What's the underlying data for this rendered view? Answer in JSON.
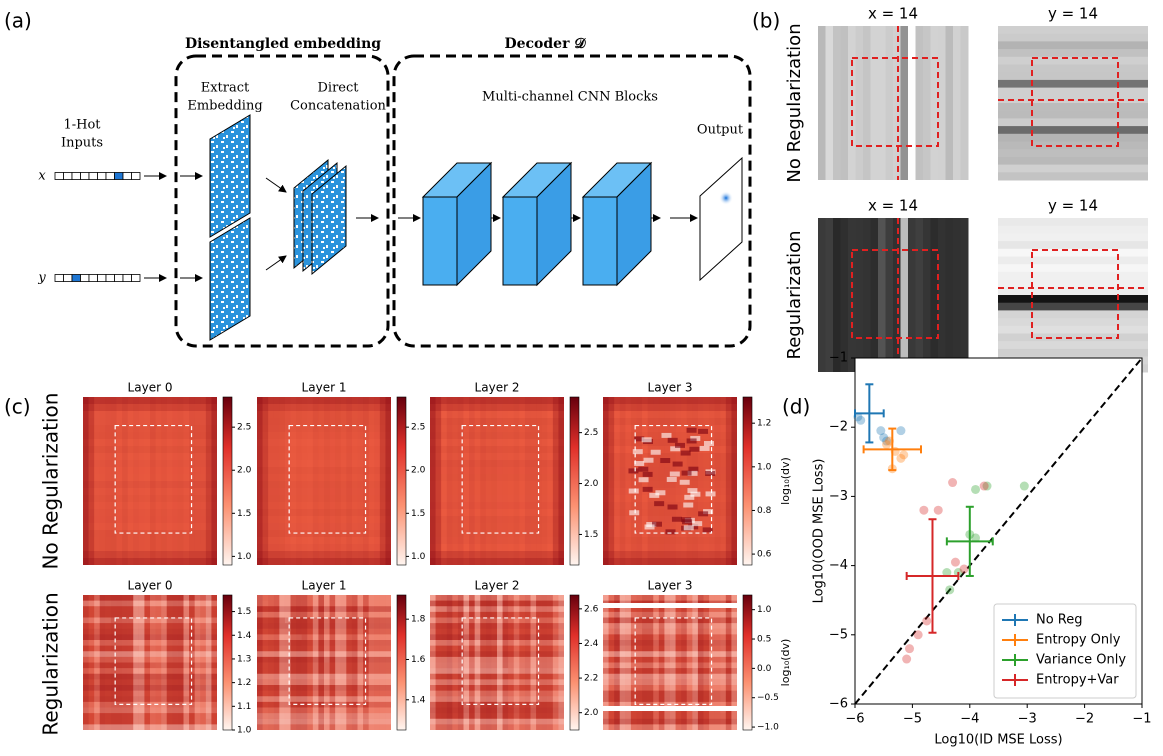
{
  "panel_a": {
    "label": "(a)",
    "embedding_title": "Disentangled embedding",
    "decoder_title": "Decoder 𝒟",
    "extract": [
      "Extract",
      "Embedding"
    ],
    "concat": [
      "Direct",
      "Concatenation"
    ],
    "cnn": "Multi-channel CNN Blocks",
    "inputs": [
      "1-Hot",
      "Inputs"
    ],
    "x": "x",
    "y": "y",
    "output": "Output"
  },
  "panel_b": {
    "label": "(b)",
    "titles": [
      "x = 14",
      "y = 14",
      "x = 14",
      "y = 14"
    ],
    "rows": [
      "No Regularization",
      "Regularization"
    ]
  },
  "panel_c": {
    "label": "(c)",
    "rows": [
      "No Regularization",
      "Regularization"
    ],
    "colorbar_label": "log₁₀(dv)",
    "heatmaps": [
      {
        "title": "Layer 0",
        "clim": [
          0.9,
          2.85
        ],
        "cticks": [
          {
            "value": 1,
            "label": "1.0"
          },
          1.5,
          {
            "value": 2,
            "label": "2.0"
          },
          2.5
        ]
      },
      {
        "title": "Layer 1",
        "clim": [
          0.9,
          2.85
        ],
        "cticks": [
          {
            "value": 1,
            "label": "1.0"
          },
          1.5,
          {
            "value": 2,
            "label": "2.0"
          },
          2.5
        ]
      },
      {
        "title": "Layer 2",
        "clim": [
          1.2,
          2.85
        ],
        "cticks": [
          1.5,
          {
            "value": 2,
            "label": "2.0"
          },
          2.5
        ]
      },
      {
        "title": "Layer 3",
        "clim": [
          0.55,
          1.32
        ],
        "cticks": [
          0.6,
          0.8,
          {
            "value": 1,
            "label": "1.0"
          },
          1.2
        ]
      },
      {
        "title": "Layer 0",
        "clim": [
          1.0,
          1.57
        ],
        "cticks": [
          {
            "value": 1,
            "label": "1.0"
          },
          1.1,
          1.2,
          1.3,
          1.4,
          1.5
        ]
      },
      {
        "title": "Layer 1",
        "clim": [
          1.25,
          1.92
        ],
        "cticks": [
          1.4,
          1.6,
          1.8
        ]
      },
      {
        "title": "Layer 2",
        "clim": [
          1.9,
          2.68
        ],
        "cticks": [
          {
            "value": 2,
            "label": "2.0"
          },
          2.2,
          2.4,
          2.6
        ]
      },
      {
        "title": "Layer 3",
        "clim": [
          -1.05,
          1.25
        ],
        "cticks": [
          {
            "value": -1,
            "label": "−1.0"
          },
          {
            "value": -0.5,
            "label": "−0.5"
          },
          {
            "value": 0,
            "label": "0.0"
          },
          0.5,
          {
            "value": 1,
            "label": "1.0"
          }
        ]
      }
    ]
  },
  "chart_data": {
    "type": "scatter",
    "panel_label": "(d)",
    "xlabel": "Log10(ID MSE Loss)",
    "ylabel": "Log10(OOD MSE Loss)",
    "xlim": [
      -6,
      -1
    ],
    "ylim": [
      -6,
      -1
    ],
    "xticks": [
      {
        "value": -6,
        "label": "−6"
      },
      {
        "value": -5,
        "label": "−5"
      },
      {
        "value": -4,
        "label": "−4"
      },
      {
        "value": -3,
        "label": "−3"
      },
      {
        "value": -2,
        "label": "−2"
      },
      {
        "value": -1,
        "label": "−1"
      }
    ],
    "yticks": [
      {
        "value": -6,
        "label": "−6"
      },
      {
        "value": -5,
        "label": "−5"
      },
      {
        "value": -4,
        "label": "−4"
      },
      {
        "value": -3,
        "label": "−3"
      },
      {
        "value": -2,
        "label": "−2"
      },
      {
        "value": -1,
        "label": "−1"
      }
    ],
    "legend": "lower right",
    "series": [
      {
        "name": "No Reg",
        "color": "#1f77b4",
        "x": [
          -5.95,
          -5.9,
          -5.55,
          -5.45,
          -5.2,
          -5.5
        ],
        "values": [
          -1.85,
          -1.9,
          -2.05,
          -2.2,
          -2.05,
          -2.15
        ],
        "mean_x": -5.75,
        "mean_y": -1.8,
        "xerr": 0.25,
        "yerr": 0.42
      },
      {
        "name": "Entropy Only",
        "color": "#ff7f0e",
        "x": [
          -5.4,
          -5.3,
          -5.2,
          -5.35,
          -5.15,
          -5.45
        ],
        "values": [
          -2.2,
          -2.35,
          -2.45,
          -2.6,
          -2.4,
          -2.25
        ],
        "mean_x": -5.35,
        "mean_y": -2.32,
        "xerr": 0.5,
        "yerr": 0.3
      },
      {
        "name": "Variance Only",
        "color": "#2ca02c",
        "x": [
          -3.05,
          -3.7,
          -3.9,
          -4.0,
          -3.9,
          -4.2,
          -4.35,
          -4.4
        ],
        "values": [
          -2.85,
          -2.85,
          -2.9,
          -3.55,
          -3.6,
          -4.1,
          -4.35,
          -4.1
        ],
        "mean_x": -4.0,
        "mean_y": -3.65,
        "xerr": 0.4,
        "yerr": 0.5
      },
      {
        "name": "Entropy+Var",
        "color": "#d62728",
        "x": [
          -4.3,
          -3.75,
          -4.8,
          -4.55,
          -4.25,
          -4.1,
          -4.75,
          -4.9,
          -5.05,
          -5.1
        ],
        "values": [
          -2.8,
          -2.85,
          -3.2,
          -3.2,
          -3.95,
          -4.05,
          -4.8,
          -5.0,
          -5.2,
          -5.35
        ],
        "mean_x": -4.65,
        "mean_y": -4.15,
        "xerr": 0.45,
        "yerr": 0.82
      }
    ]
  }
}
